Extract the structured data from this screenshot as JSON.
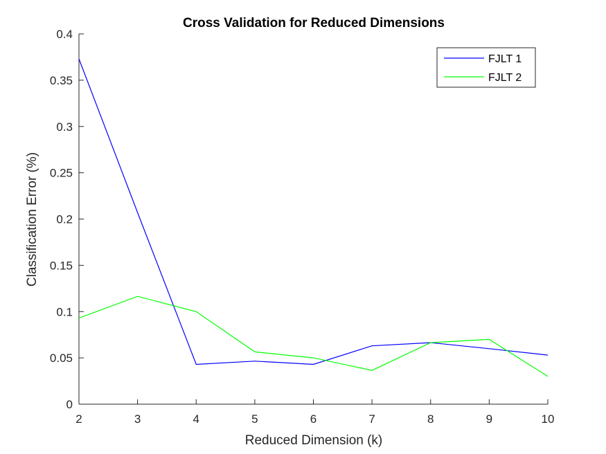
{
  "chart_data": {
    "type": "line",
    "title": "Cross Validation for Reduced Dimensions",
    "xlabel": "Reduced Dimension (k)",
    "ylabel": "Classification Error (%)",
    "xlim": [
      2,
      10
    ],
    "ylim": [
      0,
      0.4
    ],
    "xticks": [
      2,
      3,
      4,
      5,
      6,
      7,
      8,
      9,
      10
    ],
    "xtick_labels": [
      "2",
      "3",
      "4",
      "5",
      "6",
      "7",
      "8",
      "9",
      "10"
    ],
    "yticks": [
      0,
      0.05,
      0.1,
      0.15,
      0.2,
      0.25,
      0.3,
      0.35,
      0.4
    ],
    "ytick_labels": [
      "0",
      "0.05",
      "0.1",
      "0.15",
      "0.2",
      "0.25",
      "0.3",
      "0.35",
      "0.4"
    ],
    "grid": false,
    "legend_position": "top-right",
    "x": [
      2,
      3,
      4,
      5,
      6,
      7,
      8,
      9,
      10
    ],
    "series": [
      {
        "name": "FJLT 1",
        "color": "#0000ff",
        "values": [
          0.373,
          0.207,
          0.043,
          0.0465,
          0.043,
          0.063,
          0.0665,
          0.06,
          0.053
        ]
      },
      {
        "name": "FJLT 2",
        "color": "#00ff00",
        "values": [
          0.093,
          0.1165,
          0.1,
          0.0565,
          0.05,
          0.0365,
          0.0665,
          0.07,
          0.03
        ]
      }
    ]
  }
}
